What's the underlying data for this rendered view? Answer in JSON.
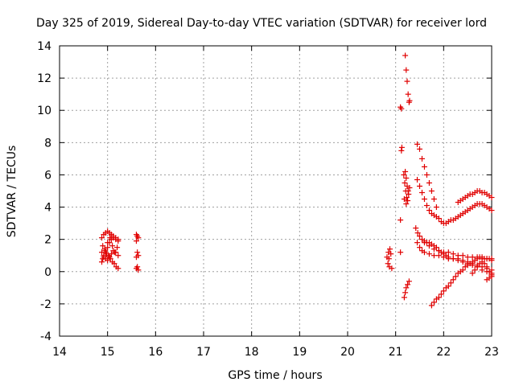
{
  "chart_data": {
    "type": "scatter",
    "title": "Day 325 of 2019, Sidereal Day-to-day VTEC variation (SDTVAR) for receiver lord",
    "xlabel": "GPS time / hours",
    "ylabel": "SDTVAR / TECUs",
    "xlim": [
      14,
      23
    ],
    "ylim": [
      -4,
      14
    ],
    "xticks": [
      "14",
      "15",
      "16",
      "17",
      "18",
      "19",
      "20",
      "21",
      "22",
      "23"
    ],
    "yticks": [
      "-4",
      "-2",
      "0",
      "2",
      "4",
      "6",
      "8",
      "10",
      "12",
      "14"
    ],
    "grid": true,
    "marker": "+",
    "marker_color": "#e00000",
    "segments": [
      [
        [
          14.88,
          2.1
        ],
        [
          14.92,
          2.3
        ],
        [
          14.96,
          2.4
        ],
        [
          15.0,
          2.5
        ],
        [
          15.04,
          2.4
        ],
        [
          15.08,
          2.3
        ],
        [
          15.12,
          2.1
        ],
        [
          15.17,
          2.0
        ],
        [
          15.22,
          1.9
        ]
      ],
      [
        [
          14.88,
          0.6
        ],
        [
          14.92,
          0.9
        ],
        [
          14.96,
          1.2
        ],
        [
          15.0,
          1.5
        ],
        [
          15.04,
          1.8
        ],
        [
          15.08,
          2.0
        ],
        [
          15.12,
          2.2
        ],
        [
          15.17,
          2.1
        ],
        [
          15.22,
          2.0
        ]
      ],
      [
        [
          14.88,
          1.2
        ],
        [
          14.92,
          1.0
        ],
        [
          14.96,
          0.8
        ],
        [
          15.0,
          0.7
        ],
        [
          15.04,
          0.9
        ],
        [
          15.08,
          1.1
        ],
        [
          15.12,
          1.3
        ],
        [
          15.17,
          1.2
        ],
        [
          15.22,
          1.0
        ]
      ],
      [
        [
          14.9,
          1.6
        ],
        [
          14.94,
          1.4
        ],
        [
          14.98,
          1.1
        ],
        [
          15.02,
          1.0
        ],
        [
          15.06,
          0.8
        ],
        [
          15.1,
          0.6
        ],
        [
          15.14,
          0.5
        ],
        [
          15.18,
          0.3
        ],
        [
          15.22,
          0.2
        ]
      ],
      [
        [
          14.9,
          0.8
        ],
        [
          14.95,
          1.3
        ],
        [
          15.0,
          1.8
        ],
        [
          15.05,
          2.1
        ],
        [
          15.1,
          1.6
        ],
        [
          15.15,
          1.2
        ],
        [
          15.2,
          1.5
        ]
      ],
      [
        [
          15.6,
          2.3
        ],
        [
          15.62,
          2.2
        ],
        [
          15.64,
          2.1
        ],
        [
          15.6,
          1.9
        ],
        [
          15.62,
          1.2
        ],
        [
          15.64,
          1.0
        ],
        [
          15.6,
          0.9
        ],
        [
          15.62,
          0.3
        ],
        [
          15.64,
          0.1
        ],
        [
          15.6,
          0.2
        ]
      ],
      [
        [
          20.82,
          0.9
        ],
        [
          20.85,
          1.2
        ],
        [
          20.88,
          1.4
        ],
        [
          20.9,
          1.1
        ],
        [
          20.84,
          0.5
        ],
        [
          20.87,
          0.3
        ],
        [
          20.92,
          0.2
        ],
        [
          20.86,
          0.8
        ]
      ],
      [
        [
          21.1,
          3.2
        ],
        [
          21.12,
          7.5
        ],
        [
          21.13,
          7.7
        ],
        [
          21.1,
          10.2
        ],
        [
          21.12,
          10.1
        ],
        [
          21.1,
          1.2
        ]
      ],
      [
        [
          21.2,
          13.4
        ],
        [
          21.22,
          12.5
        ],
        [
          21.24,
          11.8
        ],
        [
          21.26,
          11.0
        ],
        [
          21.28,
          10.5
        ],
        [
          21.29,
          10.6
        ]
      ],
      [
        [
          21.17,
          6.0
        ],
        [
          21.19,
          5.5
        ],
        [
          21.21,
          5.0
        ],
        [
          21.23,
          4.6
        ],
        [
          21.25,
          4.4
        ],
        [
          21.27,
          4.8
        ],
        [
          21.29,
          5.2
        ],
        [
          21.2,
          6.2
        ],
        [
          21.22,
          5.8
        ],
        [
          21.24,
          5.3
        ],
        [
          21.26,
          5.0
        ],
        [
          21.18,
          4.5
        ],
        [
          21.22,
          4.2
        ]
      ],
      [
        [
          21.18,
          -1.6
        ],
        [
          21.2,
          -1.3
        ],
        [
          21.22,
          -1.0
        ],
        [
          21.25,
          -0.8
        ],
        [
          21.28,
          -0.6
        ]
      ],
      [
        [
          21.45,
          7.9
        ],
        [
          21.5,
          7.6
        ],
        [
          21.55,
          7.0
        ],
        [
          21.6,
          6.5
        ],
        [
          21.65,
          6.0
        ],
        [
          21.7,
          5.5
        ],
        [
          21.75,
          5.0
        ],
        [
          21.8,
          4.5
        ],
        [
          21.85,
          4.0
        ]
      ],
      [
        [
          21.45,
          5.7
        ],
        [
          21.5,
          5.3
        ],
        [
          21.55,
          4.9
        ],
        [
          21.6,
          4.5
        ],
        [
          21.65,
          4.1
        ],
        [
          21.7,
          3.8
        ],
        [
          21.75,
          3.6
        ],
        [
          21.8,
          3.5
        ],
        [
          21.85,
          3.4
        ],
        [
          21.9,
          3.3
        ],
        [
          21.95,
          3.1
        ],
        [
          22.0,
          3.0
        ],
        [
          22.05,
          3.0
        ],
        [
          22.1,
          3.1
        ],
        [
          22.15,
          3.2
        ],
        [
          22.2,
          3.2
        ],
        [
          22.25,
          3.3
        ],
        [
          22.3,
          3.4
        ],
        [
          22.35,
          3.5
        ],
        [
          22.4,
          3.6
        ],
        [
          22.45,
          3.7
        ],
        [
          22.5,
          3.8
        ],
        [
          22.55,
          3.9
        ],
        [
          22.6,
          4.0
        ],
        [
          22.65,
          4.1
        ],
        [
          22.7,
          4.2
        ],
        [
          22.75,
          4.2
        ],
        [
          22.8,
          4.2
        ],
        [
          22.85,
          4.1
        ],
        [
          22.9,
          4.0
        ],
        [
          22.95,
          3.9
        ],
        [
          23.0,
          3.8
        ]
      ],
      [
        [
          22.3,
          4.3
        ],
        [
          22.35,
          4.4
        ],
        [
          22.4,
          4.5
        ],
        [
          22.45,
          4.6
        ],
        [
          22.5,
          4.7
        ],
        [
          22.55,
          4.8
        ],
        [
          22.6,
          4.8
        ],
        [
          22.65,
          4.9
        ],
        [
          22.7,
          5.0
        ],
        [
          22.75,
          5.0
        ],
        [
          22.8,
          4.9
        ],
        [
          22.85,
          4.9
        ],
        [
          22.9,
          4.8
        ],
        [
          22.95,
          4.7
        ],
        [
          23.0,
          4.6
        ]
      ],
      [
        [
          21.42,
          2.7
        ],
        [
          21.46,
          2.4
        ],
        [
          21.5,
          2.2
        ],
        [
          21.55,
          2.0
        ],
        [
          21.6,
          1.9
        ],
        [
          21.65,
          1.8
        ],
        [
          21.7,
          1.8
        ],
        [
          21.75,
          1.7
        ],
        [
          21.8,
          1.6
        ],
        [
          21.85,
          1.5
        ],
        [
          21.9,
          1.3
        ],
        [
          21.95,
          1.2
        ],
        [
          22.0,
          1.1
        ],
        [
          22.05,
          1.0
        ],
        [
          22.1,
          0.9
        ],
        [
          22.2,
          0.8
        ],
        [
          22.3,
          0.8
        ],
        [
          22.4,
          0.7
        ],
        [
          22.5,
          0.6
        ],
        [
          22.6,
          0.5
        ],
        [
          22.7,
          0.4
        ],
        [
          22.8,
          0.3
        ],
        [
          22.9,
          0.2
        ],
        [
          23.0,
          0.1
        ]
      ],
      [
        [
          21.45,
          1.8
        ],
        [
          21.5,
          1.5
        ],
        [
          21.55,
          1.3
        ],
        [
          21.6,
          1.2
        ],
        [
          21.7,
          1.1
        ],
        [
          21.8,
          1.0
        ],
        [
          21.9,
          1.0
        ],
        [
          22.0,
          0.9
        ],
        [
          22.1,
          0.8
        ],
        [
          22.2,
          0.8
        ],
        [
          22.3,
          0.7
        ],
        [
          22.4,
          0.6
        ],
        [
          22.5,
          0.5
        ],
        [
          22.6,
          0.4
        ],
        [
          22.7,
          0.3
        ],
        [
          22.8,
          0.1
        ],
        [
          22.9,
          0.0
        ],
        [
          23.0,
          -0.2
        ]
      ],
      [
        [
          21.6,
          1.8
        ],
        [
          21.7,
          1.6
        ],
        [
          21.8,
          1.4
        ],
        [
          21.9,
          1.3
        ],
        [
          22.0,
          1.2
        ],
        [
          22.1,
          1.2
        ],
        [
          22.2,
          1.1
        ],
        [
          22.3,
          1.0
        ],
        [
          22.4,
          1.0
        ],
        [
          22.5,
          0.9
        ],
        [
          22.6,
          0.9
        ],
        [
          22.7,
          0.9
        ],
        [
          22.8,
          0.8
        ],
        [
          22.9,
          0.8
        ],
        [
          23.0,
          0.7
        ]
      ],
      [
        [
          21.75,
          -2.1
        ],
        [
          21.8,
          -1.9
        ],
        [
          21.85,
          -1.7
        ],
        [
          21.9,
          -1.6
        ],
        [
          21.95,
          -1.4
        ],
        [
          22.0,
          -1.2
        ],
        [
          22.05,
          -1.0
        ],
        [
          22.1,
          -0.9
        ],
        [
          22.15,
          -0.7
        ],
        [
          22.2,
          -0.5
        ],
        [
          22.25,
          -0.3
        ],
        [
          22.3,
          -0.1
        ],
        [
          22.35,
          0.0
        ],
        [
          22.4,
          0.1
        ],
        [
          22.45,
          0.3
        ],
        [
          22.5,
          0.4
        ],
        [
          22.55,
          0.5
        ],
        [
          22.6,
          0.6
        ],
        [
          22.65,
          0.7
        ],
        [
          22.7,
          0.8
        ],
        [
          22.75,
          0.9
        ],
        [
          22.8,
          0.9
        ],
        [
          22.85,
          0.8
        ],
        [
          22.9,
          0.8
        ],
        [
          22.95,
          0.8
        ],
        [
          23.0,
          0.8
        ]
      ],
      [
        [
          22.6,
          -0.1
        ],
        [
          22.65,
          0.1
        ],
        [
          22.7,
          0.3
        ],
        [
          22.75,
          0.5
        ],
        [
          22.8,
          0.6
        ],
        [
          22.85,
          0.5
        ],
        [
          22.9,
          0.3
        ],
        [
          22.95,
          0.0
        ],
        [
          23.0,
          -0.3
        ],
        [
          22.9,
          -0.5
        ],
        [
          22.95,
          -0.4
        ],
        [
          23.0,
          -0.1
        ]
      ]
    ]
  }
}
